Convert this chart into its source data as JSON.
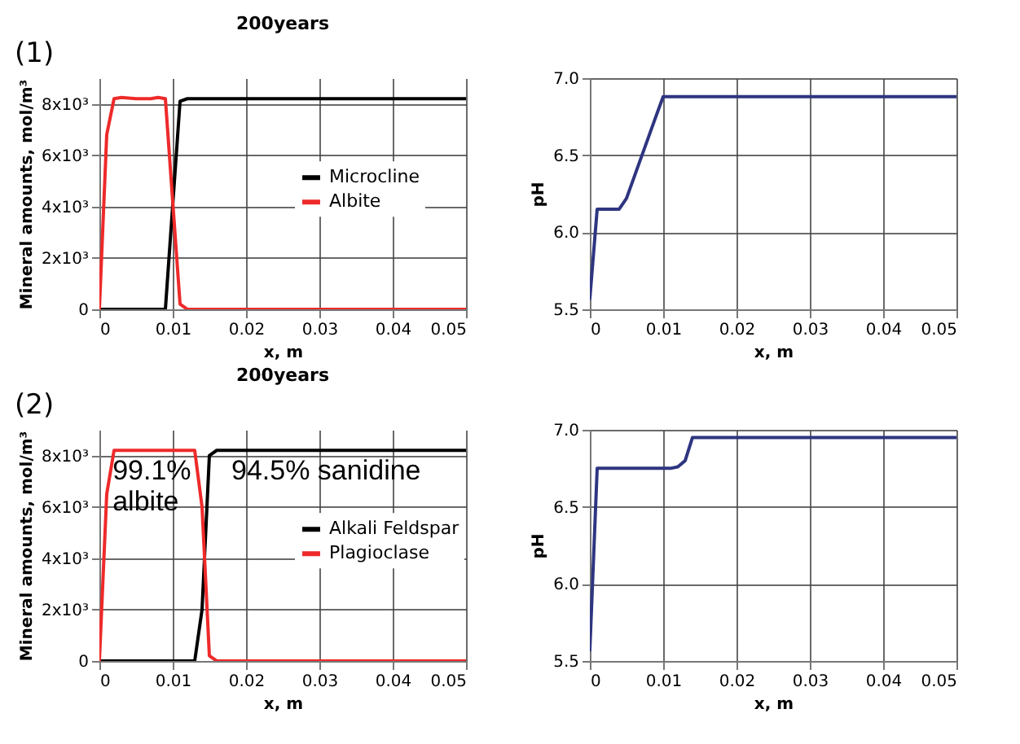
{
  "chart_data": [
    {
      "type": "line",
      "title": "200years",
      "xlabel": "x, m",
      "ylabel": "Mineral amounts, mol/m³",
      "xlim": [
        0,
        0.05
      ],
      "xticks": [
        0,
        0.01,
        0.02,
        0.03,
        0.04,
        0.05
      ],
      "ylim": [
        0,
        9000
      ],
      "yticks": [
        0,
        {
          "value": 2000,
          "label": "2x10³"
        },
        {
          "value": 4000,
          "label": "4x10³"
        },
        {
          "value": 6000,
          "label": "6x10³"
        },
        {
          "value": 8000,
          "label": "8x10³"
        }
      ],
      "grid": true,
      "legend": "right",
      "annotations": [
        "(1)"
      ],
      "series": [
        {
          "name": "Microcline",
          "color": "#000000",
          "x": [
            0,
            0.009,
            0.011,
            0.012,
            0.05
          ],
          "values": [
            0,
            0,
            8100,
            8200,
            8200
          ]
        },
        {
          "name": "Albite",
          "color": "#ee2a2a",
          "x": [
            0,
            0.001,
            0.002,
            0.003,
            0.005,
            0.007,
            0.008,
            0.009,
            0.011,
            0.012,
            0.05
          ],
          "values": [
            0,
            6800,
            8200,
            8250,
            8200,
            8200,
            8250,
            8200,
            200,
            0,
            0
          ]
        }
      ]
    },
    {
      "type": "line",
      "xlabel": "x, m",
      "ylabel": "pH",
      "xlim": [
        0,
        0.05
      ],
      "xticks": [
        0,
        0.01,
        0.02,
        0.03,
        0.04,
        0.05
      ],
      "ylim": [
        5.5,
        7.0
      ],
      "yticks": [
        5.5,
        {
          "value": 6,
          "label": "6.0"
        },
        6.5,
        {
          "value": 7,
          "label": "7.0"
        }
      ],
      "grid": true,
      "series": [
        {
          "color": "#2e3580",
          "x": [
            0,
            0.001,
            0.004,
            0.005,
            0.009,
            0.01,
            0.05
          ],
          "values": [
            5.57,
            6.15,
            6.15,
            6.22,
            6.75,
            6.88,
            6.88
          ]
        }
      ]
    },
    {
      "type": "line",
      "title": "200years",
      "xlabel": "x, m",
      "ylabel": "Mineral amounts, mol/m³",
      "xlim": [
        0,
        0.05
      ],
      "xticks": [
        0,
        0.01,
        0.02,
        0.03,
        0.04,
        0.05
      ],
      "ylim": [
        0,
        9000
      ],
      "yticks": [
        0,
        {
          "value": 2000,
          "label": "2x10³"
        },
        {
          "value": 4000,
          "label": "4x10³"
        },
        {
          "value": 6000,
          "label": "6x10³"
        },
        {
          "value": 8000,
          "label": "8x10³"
        }
      ],
      "grid": true,
      "legend": "right",
      "annotations": [
        "(2)",
        {
          "text": "99.1%\nalbite",
          "x": 0.0018,
          "y": 7900
        },
        {
          "text": "94.5% sanidine",
          "x": 0.018,
          "y": 7900
        }
      ],
      "series": [
        {
          "name": "Alkali Feldspar",
          "color": "#000000",
          "x": [
            0,
            0.013,
            0.014,
            0.015,
            0.016,
            0.05
          ],
          "values": [
            0,
            0,
            2000,
            8000,
            8200,
            8200
          ]
        },
        {
          "name": "Plagioclase",
          "color": "#ee2a2a",
          "x": [
            0,
            0.001,
            0.002,
            0.013,
            0.014,
            0.015,
            0.016,
            0.05
          ],
          "values": [
            0,
            6500,
            8200,
            8200,
            6000,
            200,
            0,
            0
          ]
        }
      ]
    },
    {
      "type": "line",
      "xlabel": "x, m",
      "ylabel": "pH",
      "xlim": [
        0,
        0.05
      ],
      "xticks": [
        0,
        0.01,
        0.02,
        0.03,
        0.04,
        0.05
      ],
      "ylim": [
        5.5,
        7.0
      ],
      "yticks": [
        5.5,
        {
          "value": 6,
          "label": "6.0"
        },
        6.5,
        {
          "value": 7,
          "label": "7.0"
        }
      ],
      "grid": true,
      "series": [
        {
          "color": "#2e3580",
          "x": [
            0,
            0.001,
            0.011,
            0.012,
            0.013,
            0.014,
            0.04,
            0.05
          ],
          "values": [
            5.57,
            6.75,
            6.75,
            6.76,
            6.8,
            6.95,
            6.95,
            6.95
          ]
        }
      ]
    }
  ]
}
